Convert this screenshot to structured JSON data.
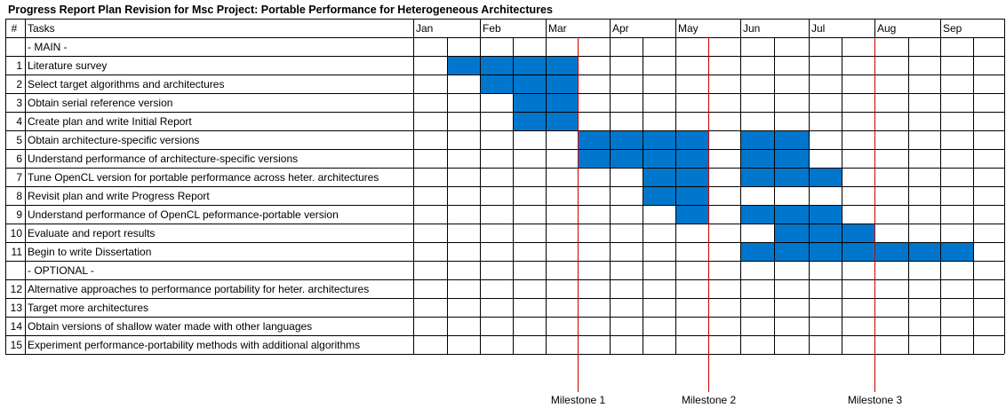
{
  "chart_data": {
    "type": "gantt",
    "title": "Progress Report Plan Revision for Msc Project: Portable Performance for Heterogeneous Architectures",
    "header": {
      "index": "#",
      "tasks": "Tasks"
    },
    "months": [
      "Jan",
      "Feb",
      "Mar",
      "Apr",
      "May",
      "Jun",
      "Jul",
      "Aug",
      "Sep"
    ],
    "half_month_columns": 17,
    "colors": {
      "bar": "#0077cc",
      "grid": "#000000",
      "milestone": "#cc0000"
    },
    "rows": [
      {
        "index": "",
        "label": "- MAIN -",
        "section": true,
        "active": []
      },
      {
        "index": "1",
        "label": "Literature survey",
        "active": [
          1,
          2,
          3,
          4
        ]
      },
      {
        "index": "2",
        "label": "Select target algorithms and architectures",
        "active": [
          2,
          3,
          4
        ]
      },
      {
        "index": "3",
        "label": "Obtain serial reference version",
        "active": [
          3,
          4
        ]
      },
      {
        "index": "4",
        "label": "Create plan and write Initial Report",
        "active": [
          3,
          4
        ]
      },
      {
        "index": "5",
        "label": "Obtain architecture-specific versions",
        "active": [
          5,
          6,
          7,
          8,
          10,
          11
        ]
      },
      {
        "index": "6",
        "label": "Understand performance of architecture-specific versions",
        "active": [
          5,
          6,
          7,
          8,
          10,
          11
        ]
      },
      {
        "index": "7",
        "label": "Tune OpenCL version for portable performance across heter. architectures",
        "active": [
          7,
          8,
          10,
          11,
          12
        ]
      },
      {
        "index": "8",
        "label": "Revisit plan and write Progress Report",
        "active": [
          7,
          8
        ]
      },
      {
        "index": "9",
        "label": "Understand performance of OpenCL peformance-portable version",
        "active": [
          8,
          10,
          11,
          12
        ]
      },
      {
        "index": "10",
        "label": "Evaluate and report results",
        "active": [
          11,
          12,
          13
        ]
      },
      {
        "index": "11",
        "label": "Begin to write Dissertation",
        "active": [
          10,
          11,
          12,
          13,
          14,
          15,
          16
        ]
      },
      {
        "index": "",
        "label": "- OPTIONAL -",
        "section": true,
        "active": []
      },
      {
        "index": "12",
        "label": "Alternative approaches to performance portability for heter. architectures",
        "active": []
      },
      {
        "index": "13",
        "label": "Target more architectures",
        "active": []
      },
      {
        "index": "14",
        "label": "Obtain versions of shallow water made with other languages",
        "active": []
      },
      {
        "index": "15",
        "label": "Experiment performance-portability methods with additional algorithms",
        "active": []
      }
    ],
    "milestones": [
      {
        "label": "Milestone 1",
        "after_column": 4
      },
      {
        "label": "Milestone 2",
        "after_column": 8
      },
      {
        "label": "Milestone 3",
        "after_column": 13
      }
    ]
  }
}
